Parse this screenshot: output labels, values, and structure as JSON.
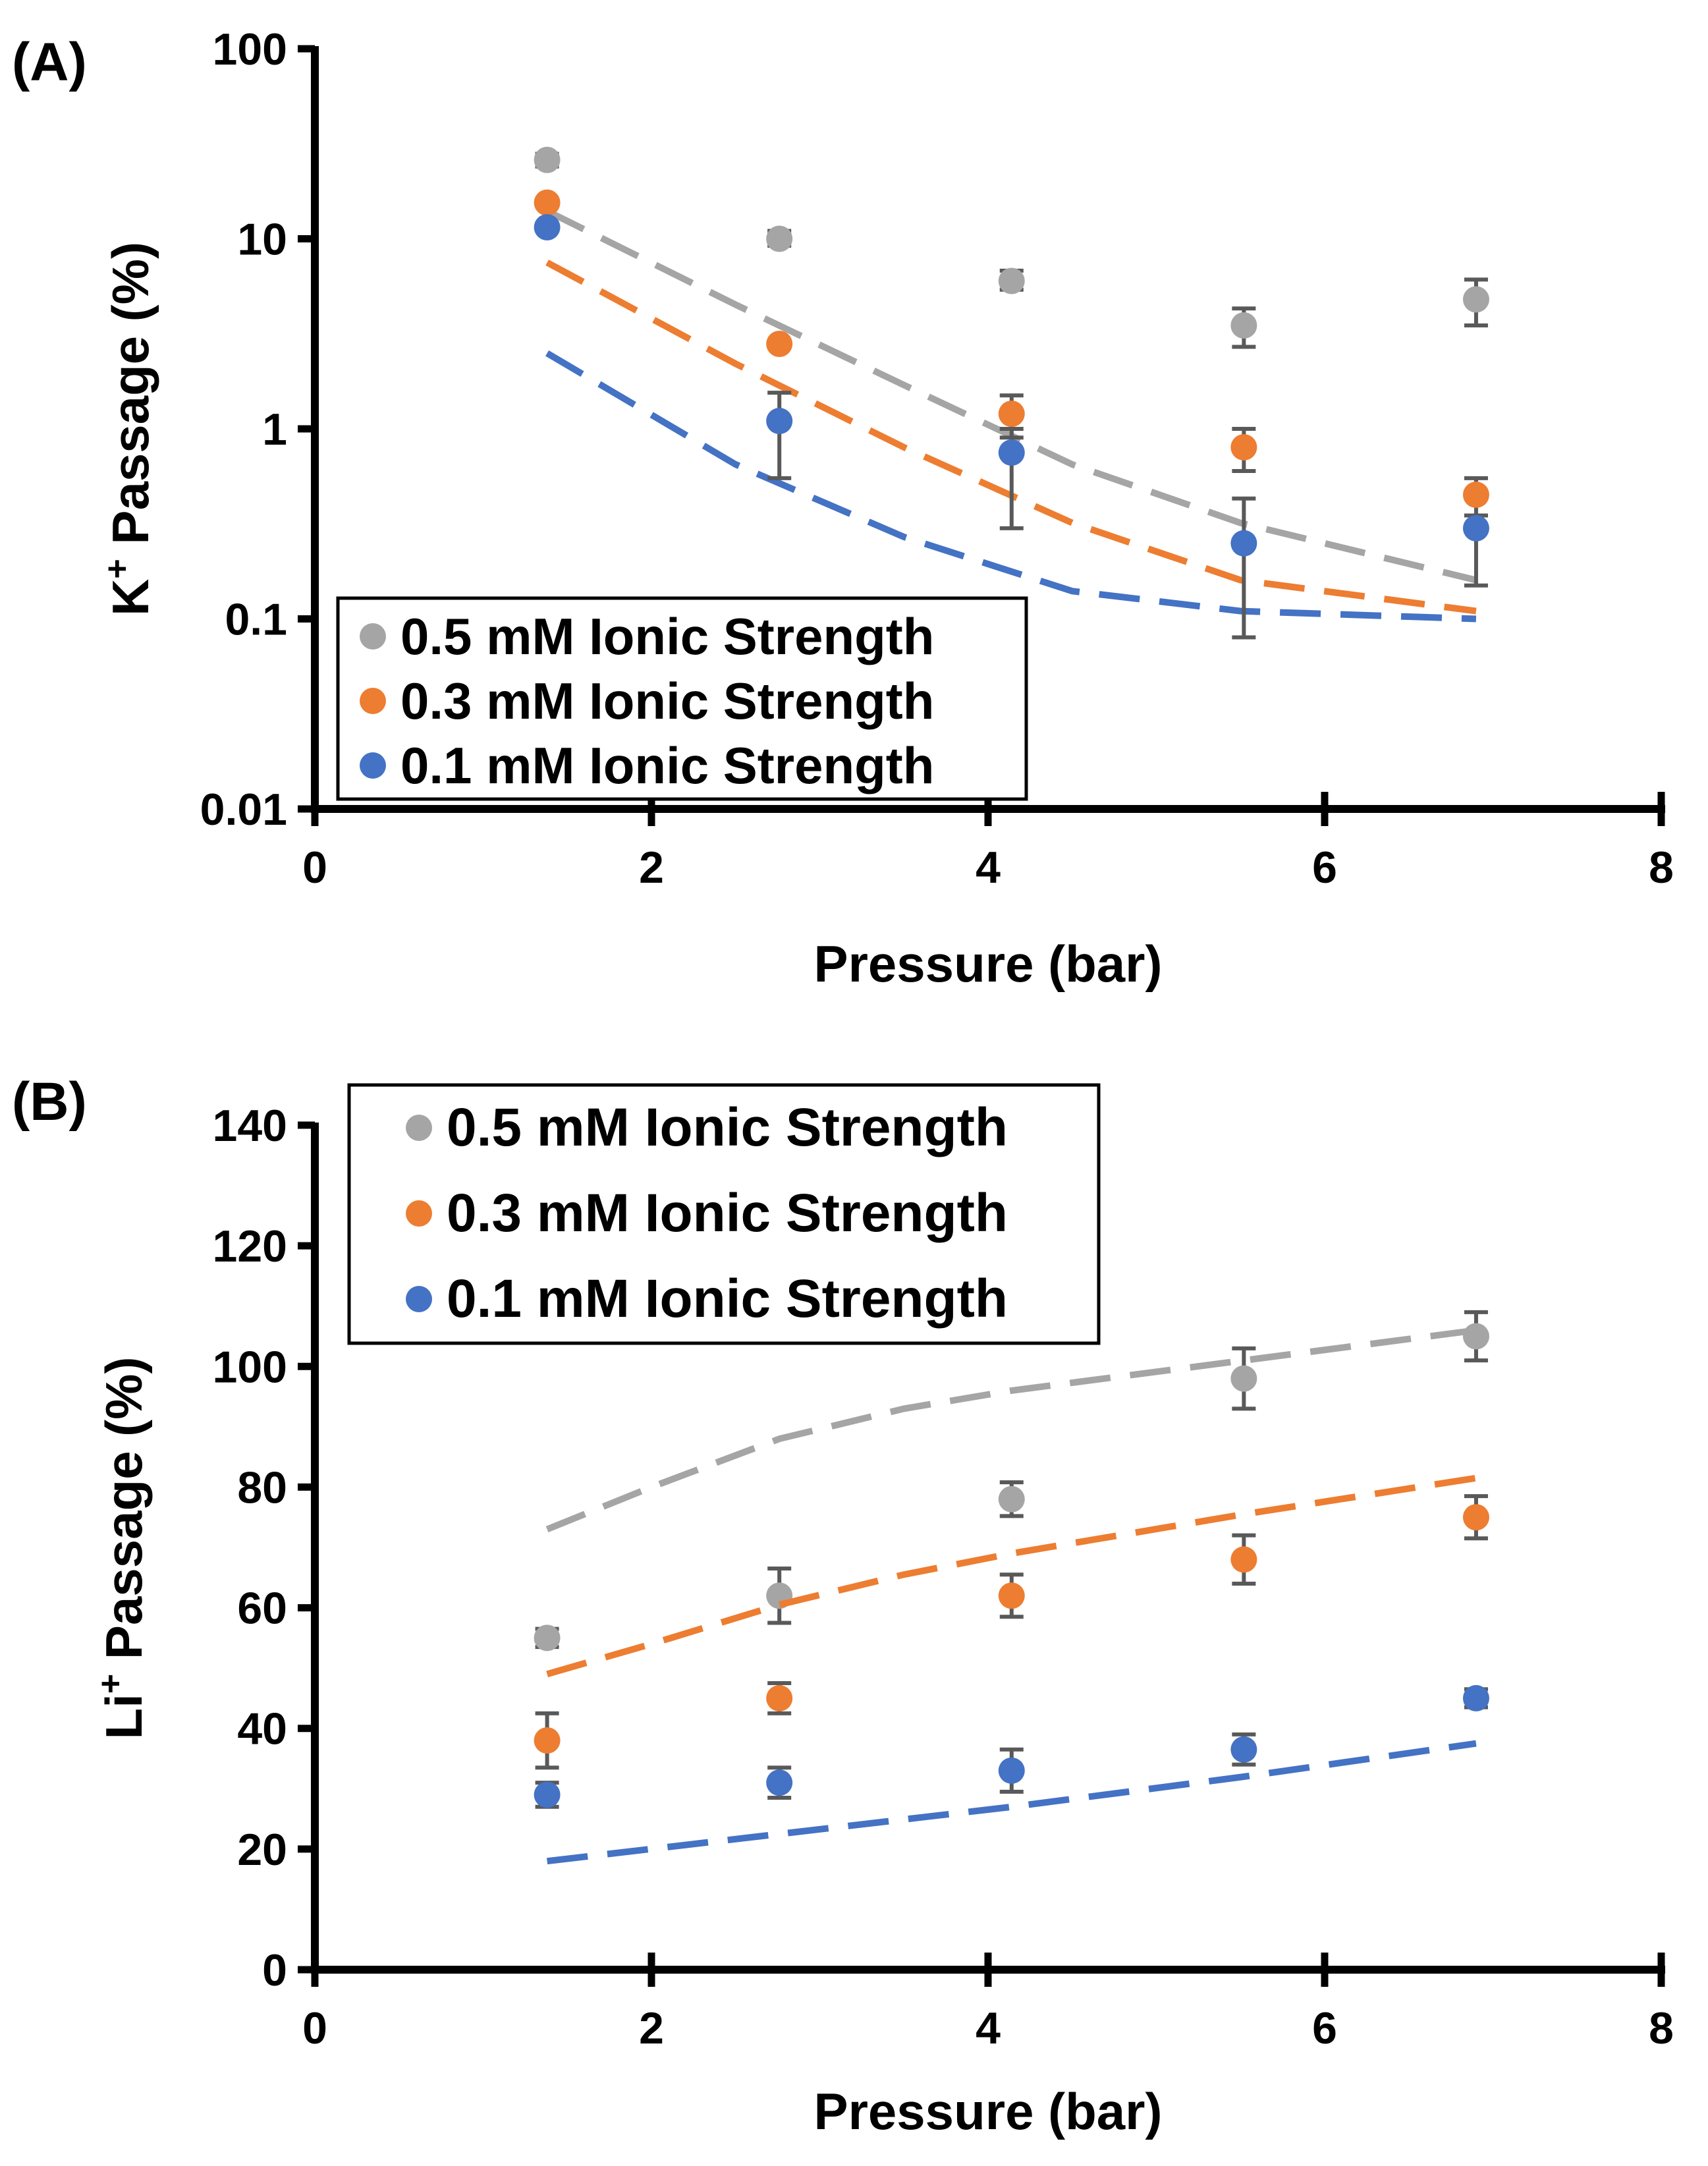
{
  "colors": {
    "gray": "#a5a5a5",
    "orange": "#ed7d31",
    "blue": "#4472c4",
    "axis": "#000000",
    "errorbar": "#595959"
  },
  "chart_data": [
    {
      "id": "A",
      "panel_label": "(A)",
      "type": "scatter",
      "yscale": "log",
      "xlabel": "Pressure (bar)",
      "ylabel_main": "K",
      "ylabel_sup": "+",
      "ylabel_rest": " Passage (%)",
      "xlim": [
        0,
        8
      ],
      "ylim": [
        0.01,
        100
      ],
      "xticks": [
        0,
        2,
        4,
        6,
        8
      ],
      "xtick_labels": [
        "0",
        "2",
        "4",
        "6",
        "8"
      ],
      "yticks": [
        0.01,
        0.1,
        1,
        10,
        100
      ],
      "ytick_labels": [
        "0.01",
        "0.1",
        "1",
        "10",
        "100"
      ],
      "legend_position": "bottom-left",
      "series": [
        {
          "name": "0.5 mM Ionic Strength",
          "color_key": "gray",
          "x": [
            1.38,
            2.76,
            4.14,
            5.52,
            6.9
          ],
          "y": [
            26,
            10,
            6,
            3.5,
            4.8
          ],
          "err_low": [
            2,
            0.8,
            0.6,
            0.8,
            1.3
          ],
          "err_high": [
            2,
            1.0,
            0.8,
            0.8,
            1.3
          ],
          "fit_x": [
            1.38,
            2.5,
            3.5,
            4.5,
            5.5,
            6.9
          ],
          "fit_y": [
            14,
            4.5,
            1.7,
            0.65,
            0.32,
            0.16
          ]
        },
        {
          "name": "0.3 mM Ionic Strength",
          "color_key": "orange",
          "x": [
            1.38,
            2.76,
            4.14,
            5.52,
            6.9
          ],
          "y": [
            15.5,
            2.8,
            1.2,
            0.8,
            0.45
          ],
          "err_low": [
            0,
            0,
            0.3,
            0.2,
            0.1
          ],
          "err_high": [
            0,
            0,
            0.3,
            0.2,
            0.1
          ],
          "fit_x": [
            1.38,
            2.5,
            3.5,
            4.5,
            5.5,
            6.9
          ],
          "fit_y": [
            7.5,
            2.2,
            0.8,
            0.32,
            0.16,
            0.11
          ]
        },
        {
          "name": "0.1 mM Ionic Strength",
          "color_key": "blue",
          "x": [
            1.38,
            2.76,
            4.14,
            5.52,
            6.9
          ],
          "y": [
            11.5,
            1.1,
            0.75,
            0.25,
            0.3
          ],
          "err_low": [
            0,
            0.55,
            0.45,
            0.17,
            0.15
          ],
          "err_high": [
            0,
            0.45,
            0.25,
            0.18,
            0.05
          ],
          "fit_x": [
            1.38,
            2.5,
            3.5,
            4.5,
            5.5,
            6.9
          ],
          "fit_y": [
            2.5,
            0.65,
            0.27,
            0.14,
            0.11,
            0.1
          ]
        }
      ]
    },
    {
      "id": "B",
      "panel_label": "(B)",
      "type": "scatter",
      "yscale": "linear",
      "xlabel": "Pressure (bar)",
      "ylabel_main": "Li",
      "ylabel_sup": "+",
      "ylabel_rest": " Passage (%)",
      "xlim": [
        0,
        8
      ],
      "ylim": [
        0,
        140
      ],
      "xticks": [
        0,
        2,
        4,
        6,
        8
      ],
      "xtick_labels": [
        "0",
        "2",
        "4",
        "6",
        "8"
      ],
      "yticks": [
        0,
        20,
        40,
        60,
        80,
        100,
        120,
        140
      ],
      "ytick_labels": [
        "0",
        "20",
        "40",
        "60",
        "80",
        "100",
        "120",
        "140"
      ],
      "legend_position": "top-left",
      "series": [
        {
          "name": "0.5 mM Ionic Strength",
          "color_key": "gray",
          "x": [
            1.38,
            2.76,
            4.14,
            5.52,
            6.9
          ],
          "y": [
            55,
            62,
            78,
            98,
            105
          ],
          "err_low": [
            1.5,
            4.5,
            2.8,
            5,
            4
          ],
          "err_high": [
            1.5,
            4.5,
            2.8,
            5,
            4
          ],
          "fit_x": [
            1.38,
            2,
            2.76,
            3.5,
            4.14,
            5.52,
            6.9
          ],
          "fit_y": [
            73,
            80,
            88,
            93,
            96,
            101,
            106
          ]
        },
        {
          "name": "0.3 mM Ionic Strength",
          "color_key": "orange",
          "x": [
            1.38,
            2.76,
            4.14,
            5.52,
            6.9
          ],
          "y": [
            38,
            45,
            62,
            68,
            75
          ],
          "err_low": [
            4.5,
            2.5,
            3.5,
            4,
            3.5
          ],
          "err_high": [
            4.5,
            2.5,
            3.5,
            4,
            3.5
          ],
          "fit_x": [
            1.38,
            2,
            2.76,
            3.5,
            4.14,
            5.52,
            6.9
          ],
          "fit_y": [
            49,
            54,
            60.5,
            65.5,
            69,
            75.5,
            81.5
          ]
        },
        {
          "name": "0.1 mM Ionic Strength",
          "color_key": "blue",
          "x": [
            1.38,
            2.76,
            4.14,
            5.52,
            6.9
          ],
          "y": [
            29,
            31,
            33,
            36.5,
            45
          ],
          "err_low": [
            2,
            2.5,
            3.5,
            2.5,
            1.5
          ],
          "err_high": [
            2,
            2.5,
            3.5,
            2.5,
            1.5
          ],
          "fit_x": [
            1.38,
            2.76,
            4.14,
            5.52,
            6.9
          ],
          "fit_y": [
            18,
            22.5,
            27,
            32,
            37.5
          ]
        }
      ]
    }
  ]
}
